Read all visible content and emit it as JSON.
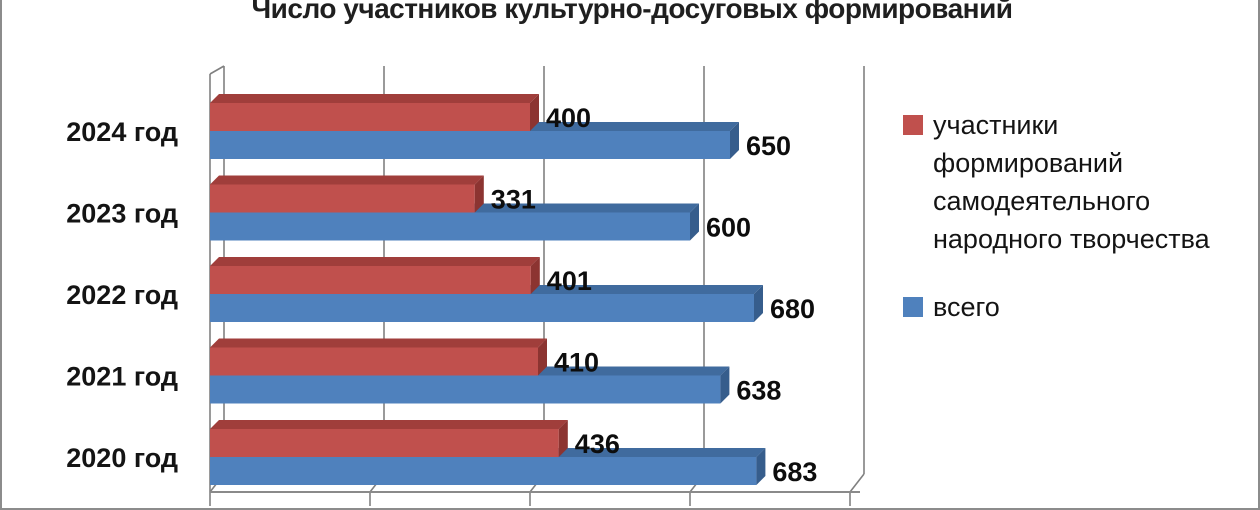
{
  "chart_data": {
    "type": "bar",
    "orientation": "horizontal",
    "title": "Число участников культурно-досуговых формирований",
    "categories": [
      "2024 год",
      "2023 год",
      "2022 год",
      "2021 год",
      "2020 год"
    ],
    "series": [
      {
        "name": "участники формирований самодеятельного народного творчества",
        "color": "#C0504D",
        "color_top": "#A03E3B",
        "color_side": "#8C3431",
        "values": [
          400,
          331,
          401,
          410,
          436
        ]
      },
      {
        "name": "всего",
        "color": "#4F81BD",
        "color_top": "#406B9E",
        "color_side": "#365D8C",
        "values": [
          650,
          600,
          680,
          638,
          683
        ]
      }
    ],
    "xlabel": "",
    "ylabel": "",
    "xlim": [
      0,
      800
    ],
    "grid_step": 200,
    "grid": true,
    "axis_tick_labels_visible": false,
    "data_labels": true,
    "legend_position": "right",
    "effect": "3d"
  },
  "colors": {
    "gridline": "#808080",
    "canvas_border": "#8C8C8C",
    "text": "#141414",
    "background": "#FFFFFF"
  }
}
